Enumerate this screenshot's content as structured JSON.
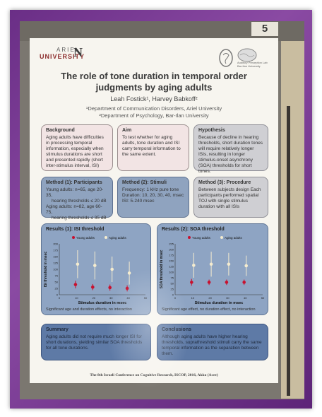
{
  "board": {
    "number": "5"
  },
  "poster": {
    "university_logo": {
      "line1": "ARIEL",
      "line2": "UNIVERSITY"
    },
    "lab_logo": {
      "text": "Auditory Perception Lab Bar-Ilan University"
    },
    "title_line1": "The role of tone duration in temporal order",
    "title_line2": "judgments by aging adults",
    "authors": "Leah Fostick¹, Harvey Babkoff²",
    "affiliation1": "¹Department of Communication Disorders, Ariel University",
    "affiliation2": "²Department of Psychology, Bar-Ilan University",
    "background": {
      "heading": "Background",
      "text": "Aging adults have difficulties in processing temporal information, especially when stimulus durations are short and presented rapidly (short inter-stimulus interval, ISI)"
    },
    "aim": {
      "heading": "Aim",
      "text": "To test whether for aging adults, tone duration and ISI carry temporal information to the same extent."
    },
    "hypothesis": {
      "heading": "Hypothesis",
      "text": "Because of decline in hearing thresholds, short duration tones will require relatively longer ISIs, resulting in longer stimulus-onset asynchrony (SOA) thresholds for short tones."
    },
    "method1": {
      "heading": "Method (1): Participants",
      "line1": "Young adults: n=65, age 20-35,",
      "line2": "hearing thresholds ≤ 20 dB",
      "line3": "Aging adults: n=82, age 60-75,",
      "line4": "hearing thresholds ≤ 35 dB"
    },
    "method2": {
      "heading": "Method (2): Stimuli",
      "line1": "Frequency: 1 kHz pure tone",
      "line2": "Duration: 10, 20, 30, 40, msec",
      "line3": "ISI: 5-240 msec"
    },
    "method3": {
      "heading": "Method (3): Procedure",
      "text": "Between subjects design Each participants performed spatial TOJ with single stimulus duration with all ISIs"
    },
    "results1": {
      "heading": "Results (1): ISI threshold",
      "legend_young": "Young adults",
      "legend_aging": "Aging adults",
      "ylabel": "ISI threshold in msec",
      "xlabel": "Stimulus duration in msec",
      "note": "Significant age and duration effects, no interaction"
    },
    "results2": {
      "heading": "Results (2): SOA threshold",
      "legend_young": "Young adults",
      "legend_aging": "Aging adults",
      "ylabel": "SOA threshold in msec",
      "xlabel": "Stimulus duration in msec",
      "note": "Significant age effect, no duration effect, no interaction"
    },
    "summary": {
      "heading": "Summary",
      "text": "Aging adults did not require much longer ISI for short durations, yielding similar SOA thresholds for all tone durations."
    },
    "conclusions": {
      "heading": "Conclusions",
      "text": "Although aging adults have higher hearing thresholds, suprathreshold stimuli carry the same temporal information as the separation between them."
    },
    "footer": "The 8th Israeli Conference on Cognitive Research, ISCOP, 2016, Akko (Acre)"
  },
  "chart_data": [
    {
      "type": "scatter",
      "title": "Results (1): ISI threshold",
      "xlabel": "Stimulus duration in msec",
      "ylabel": "ISI threshold in msec",
      "x_ticks": [
        0,
        10,
        20,
        30,
        40,
        50
      ],
      "y_ticks": [
        0,
        25,
        50,
        75,
        100,
        125,
        150,
        175,
        200
      ],
      "xlim": [
        0,
        50
      ],
      "ylim": [
        0,
        200
      ],
      "series": [
        {
          "name": "Young adults",
          "color": "#c8102e",
          "x": [
            10,
            20,
            30,
            40
          ],
          "y": [
            40,
            30,
            28,
            25
          ],
          "err": [
            15,
            12,
            12,
            12
          ]
        },
        {
          "name": "Aging adults",
          "color": "#f5eccf",
          "x": [
            10,
            20,
            30,
            40
          ],
          "y": [
            120,
            115,
            100,
            85
          ],
          "err": [
            55,
            55,
            50,
            45
          ]
        }
      ]
    },
    {
      "type": "scatter",
      "title": "Results (2): SOA threshold",
      "xlabel": "Stimulus duration in msec",
      "ylabel": "SOA threshold in msec",
      "x_ticks": [
        0,
        10,
        20,
        30,
        40,
        50
      ],
      "y_ticks": [
        0,
        25,
        50,
        75,
        100,
        125,
        150,
        175,
        200,
        225
      ],
      "xlim": [
        0,
        50
      ],
      "ylim": [
        0,
        225
      ],
      "series": [
        {
          "name": "Young adults",
          "color": "#c8102e",
          "x": [
            10,
            20,
            30,
            40
          ],
          "y": [
            55,
            55,
            55,
            55
          ],
          "err": [
            15,
            12,
            12,
            12
          ]
        },
        {
          "name": "Aging adults",
          "color": "#f5eccf",
          "x": [
            10,
            20,
            30,
            40
          ],
          "y": [
            130,
            135,
            135,
            128
          ],
          "err": [
            55,
            55,
            50,
            45
          ]
        }
      ]
    }
  ]
}
